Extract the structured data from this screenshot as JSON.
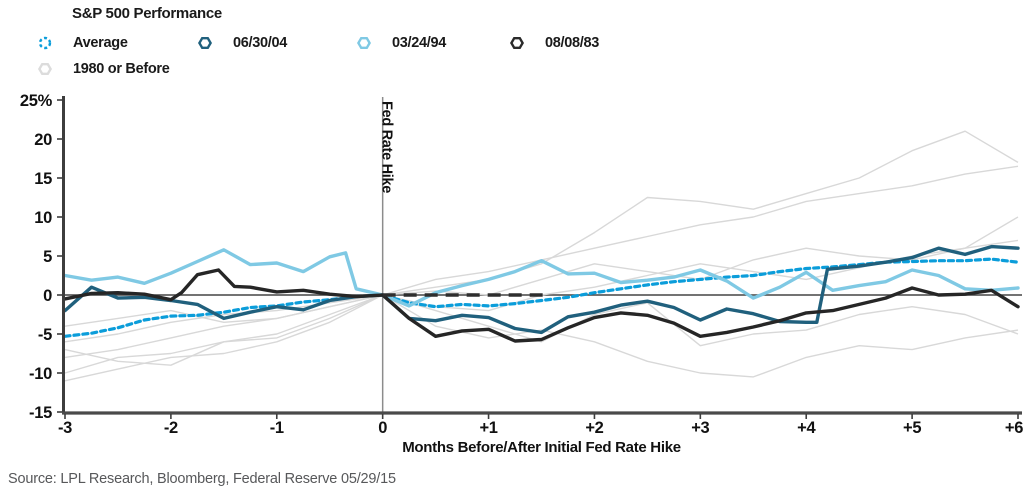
{
  "title": "S&P 500 Performance",
  "legend": {
    "items": [
      {
        "id": "average",
        "label": "Average",
        "color": "#0b9dda",
        "marker": "dashed-circle"
      },
      {
        "id": "hike-2004",
        "label": "06/30/04",
        "color": "#20607d",
        "marker": "hexagon"
      },
      {
        "id": "hike-1994",
        "label": "03/24/94",
        "color": "#7fc9e4",
        "marker": "hexagon"
      },
      {
        "id": "hike-1983",
        "label": "08/08/83",
        "color": "#2b2b2b",
        "marker": "hexagon"
      },
      {
        "id": "pre-1980",
        "label": "1980 or Before",
        "color": "#dcdcdc",
        "marker": "hexagon"
      }
    ]
  },
  "source": "Source: LPL Research, Bloomberg, Federal Reserve   05/29/15",
  "chart_data": {
    "type": "line",
    "title": "S&P 500 Performance",
    "xlabel": "Months Before/After Initial Fed Rate Hike",
    "ylabel": "",
    "xlim": [
      -3,
      6
    ],
    "ylim": [
      -15,
      25
    ],
    "grid": false,
    "zero_line": true,
    "x_ticks": [
      {
        "v": -3,
        "label": "-3"
      },
      {
        "v": -2,
        "label": "-2"
      },
      {
        "v": -1,
        "label": "-1"
      },
      {
        "v": 0,
        "label": "0"
      },
      {
        "v": 1,
        "label": "+1"
      },
      {
        "v": 2,
        "label": "+2"
      },
      {
        "v": 3,
        "label": "+3"
      },
      {
        "v": 4,
        "label": "+4"
      },
      {
        "v": 5,
        "label": "+5"
      },
      {
        "v": 6,
        "label": "+6"
      }
    ],
    "y_ticks": [
      {
        "v": 25,
        "label": "25%"
      },
      {
        "v": 20,
        "label": "20"
      },
      {
        "v": 15,
        "label": "15"
      },
      {
        "v": 10,
        "label": "10"
      },
      {
        "v": 5,
        "label": "5"
      },
      {
        "v": 0,
        "label": "0"
      },
      {
        "v": -5,
        "label": "-5"
      },
      {
        "v": -10,
        "label": "-10"
      },
      {
        "v": -15,
        "label": "-15"
      }
    ],
    "annotations": {
      "vline": {
        "x": 0,
        "label": "Fed Rate Hike",
        "color": "#8c8c8c"
      },
      "flat_zero_dash": {
        "x1": 0,
        "x2": 1.52,
        "y": 0,
        "color": "#2e2e2e"
      }
    },
    "series": [
      {
        "id": "average",
        "name": "Average",
        "color": "#0b9dda",
        "style": "dashed",
        "width": 3.2,
        "points": [
          [
            -3,
            -5.3
          ],
          [
            -2.75,
            -4.9
          ],
          [
            -2.5,
            -4.2
          ],
          [
            -2.25,
            -3.2
          ],
          [
            -2,
            -2.7
          ],
          [
            -1.75,
            -2.6
          ],
          [
            -1.5,
            -2.2
          ],
          [
            -1.25,
            -1.6
          ],
          [
            -1,
            -1.4
          ],
          [
            -0.75,
            -0.9
          ],
          [
            -0.5,
            -0.6
          ],
          [
            -0.25,
            -0.2
          ],
          [
            0,
            0
          ],
          [
            0.25,
            -1.0
          ],
          [
            0.5,
            -1.5
          ],
          [
            0.75,
            -1.2
          ],
          [
            1,
            -1.4
          ],
          [
            1.25,
            -1.1
          ],
          [
            1.5,
            -0.7
          ],
          [
            1.75,
            -0.3
          ],
          [
            2,
            0.3
          ],
          [
            2.25,
            0.8
          ],
          [
            2.5,
            1.3
          ],
          [
            2.75,
            1.7
          ],
          [
            3,
            2.0
          ],
          [
            3.25,
            2.3
          ],
          [
            3.5,
            2.5
          ],
          [
            3.75,
            3.0
          ],
          [
            4,
            3.4
          ],
          [
            4.25,
            3.6
          ],
          [
            4.5,
            3.9
          ],
          [
            4.75,
            4.2
          ],
          [
            5,
            4.3
          ],
          [
            5.25,
            4.4
          ],
          [
            5.5,
            4.4
          ],
          [
            5.75,
            4.6
          ],
          [
            6,
            4.2
          ]
        ]
      },
      {
        "id": "hike-1994",
        "name": "03/24/94",
        "color": "#7fc9e4",
        "style": "solid",
        "width": 3.4,
        "points": [
          [
            -3,
            2.5
          ],
          [
            -2.75,
            1.9
          ],
          [
            -2.5,
            2.3
          ],
          [
            -2.25,
            1.5
          ],
          [
            -2,
            2.8
          ],
          [
            -1.75,
            4.3
          ],
          [
            -1.5,
            5.8
          ],
          [
            -1.25,
            3.9
          ],
          [
            -1,
            4.1
          ],
          [
            -0.75,
            3.0
          ],
          [
            -0.5,
            4.9
          ],
          [
            -0.35,
            5.4
          ],
          [
            -0.25,
            0.8
          ],
          [
            0,
            0
          ],
          [
            0.25,
            -1.4
          ],
          [
            0.5,
            0.3
          ],
          [
            0.75,
            1.2
          ],
          [
            1,
            2.0
          ],
          [
            1.25,
            3.0
          ],
          [
            1.5,
            4.4
          ],
          [
            1.75,
            2.7
          ],
          [
            2,
            2.8
          ],
          [
            2.25,
            1.6
          ],
          [
            2.5,
            1.9
          ],
          [
            2.75,
            2.3
          ],
          [
            3,
            3.2
          ],
          [
            3.25,
            1.8
          ],
          [
            3.5,
            -0.4
          ],
          [
            3.75,
            1.0
          ],
          [
            4,
            2.9
          ],
          [
            4.25,
            0.6
          ],
          [
            4.5,
            1.2
          ],
          [
            4.75,
            1.7
          ],
          [
            5,
            3.2
          ],
          [
            5.25,
            2.5
          ],
          [
            5.5,
            0.8
          ],
          [
            5.75,
            0.6
          ],
          [
            6,
            0.9
          ]
        ]
      },
      {
        "id": "hike-2004",
        "name": "06/30/04",
        "color": "#20607d",
        "style": "solid",
        "width": 3.4,
        "points": [
          [
            -3,
            -2.0
          ],
          [
            -2.75,
            1.0
          ],
          [
            -2.5,
            -0.4
          ],
          [
            -2.25,
            -0.3
          ],
          [
            -2,
            -0.7
          ],
          [
            -1.75,
            -1.2
          ],
          [
            -1.5,
            -3.0
          ],
          [
            -1.25,
            -2.2
          ],
          [
            -1,
            -1.5
          ],
          [
            -0.75,
            -1.9
          ],
          [
            -0.5,
            -0.7
          ],
          [
            -0.25,
            -0.2
          ],
          [
            0,
            0
          ],
          [
            0.25,
            -3.0
          ],
          [
            0.5,
            -3.3
          ],
          [
            0.75,
            -2.6
          ],
          [
            1,
            -2.9
          ],
          [
            1.25,
            -4.3
          ],
          [
            1.5,
            -4.8
          ],
          [
            1.75,
            -2.8
          ],
          [
            2,
            -2.2
          ],
          [
            2.25,
            -1.3
          ],
          [
            2.5,
            -0.8
          ],
          [
            2.75,
            -1.6
          ],
          [
            3,
            -3.2
          ],
          [
            3.25,
            -1.8
          ],
          [
            3.5,
            -2.4
          ],
          [
            3.75,
            -3.4
          ],
          [
            4,
            -3.5
          ],
          [
            4.1,
            -3.5
          ],
          [
            4.2,
            3.3
          ],
          [
            4.5,
            3.7
          ],
          [
            4.75,
            4.2
          ],
          [
            5,
            4.8
          ],
          [
            5.25,
            6.0
          ],
          [
            5.5,
            5.2
          ],
          [
            5.75,
            6.2
          ],
          [
            6,
            6.0
          ]
        ]
      },
      {
        "id": "hike-1983",
        "name": "08/08/83",
        "color": "#262626",
        "style": "solid",
        "width": 3.4,
        "points": [
          [
            -3,
            -0.5
          ],
          [
            -2.75,
            0.2
          ],
          [
            -2.5,
            0.3
          ],
          [
            -2.25,
            0.1
          ],
          [
            -2,
            -0.6
          ],
          [
            -1.9,
            0.3
          ],
          [
            -1.75,
            2.6
          ],
          [
            -1.55,
            3.2
          ],
          [
            -1.4,
            1.1
          ],
          [
            -1.25,
            1.0
          ],
          [
            -1,
            0.4
          ],
          [
            -0.75,
            0.6
          ],
          [
            -0.5,
            0.1
          ],
          [
            -0.25,
            -0.2
          ],
          [
            0,
            0
          ],
          [
            0.25,
            -3.0
          ],
          [
            0.5,
            -5.3
          ],
          [
            0.75,
            -4.6
          ],
          [
            1,
            -4.4
          ],
          [
            1.25,
            -5.9
          ],
          [
            1.5,
            -5.7
          ],
          [
            1.75,
            -4.2
          ],
          [
            2,
            -2.9
          ],
          [
            2.25,
            -2.3
          ],
          [
            2.5,
            -2.6
          ],
          [
            2.75,
            -3.6
          ],
          [
            3,
            -5.3
          ],
          [
            3.25,
            -4.8
          ],
          [
            3.5,
            -4.1
          ],
          [
            3.75,
            -3.3
          ],
          [
            4,
            -2.3
          ],
          [
            4.25,
            -2.0
          ],
          [
            4.5,
            -1.2
          ],
          [
            4.75,
            -0.4
          ],
          [
            5,
            0.9
          ],
          [
            5.25,
            0
          ],
          [
            5.5,
            0.1
          ],
          [
            5.75,
            0.6
          ],
          [
            6,
            -1.5
          ]
        ]
      }
    ],
    "background_series": [
      {
        "id": "pre1980-a",
        "name": "1980 or Before",
        "color": "#d8d8d8",
        "x_start": -3,
        "x_step": 0.5,
        "values": [
          -6,
          -5,
          -3.5,
          -2.5,
          -2,
          -1,
          0,
          1,
          2,
          4,
          8,
          12.5,
          12,
          11,
          13,
          15,
          18.5,
          21,
          17
        ]
      },
      {
        "id": "pre1980-b",
        "name": "1980 or Before",
        "color": "#d8d8d8",
        "x_start": -3,
        "x_step": 0.5,
        "values": [
          -8,
          -7,
          -5.5,
          -4,
          -3,
          -1.5,
          0,
          2,
          3,
          4.5,
          6,
          7.5,
          9,
          10,
          12,
          13,
          14,
          15.5,
          16.5
        ]
      },
      {
        "id": "pre1980-c",
        "name": "1980 or Before",
        "color": "#d8d8d8",
        "x_start": -3,
        "x_step": 0.5,
        "values": [
          -4,
          -3,
          -2,
          -3.5,
          -3,
          -1.5,
          0,
          0.5,
          0,
          2,
          4,
          3,
          2,
          4.5,
          6,
          5,
          4.5,
          6,
          10
        ]
      },
      {
        "id": "pre1980-d",
        "name": "1980 or Before",
        "color": "#d8d8d8",
        "x_start": -3,
        "x_step": 0.5,
        "values": [
          -7,
          -8.5,
          -9,
          -6,
          -5,
          -2.5,
          0,
          -1.5,
          -2,
          0,
          1,
          2.5,
          4,
          3,
          2,
          3.5,
          5,
          6,
          7
        ]
      },
      {
        "id": "pre1980-e",
        "name": "1980 or Before",
        "color": "#d8d8d8",
        "x_start": -3,
        "x_step": 0.5,
        "values": [
          -10,
          -8,
          -7.5,
          -6,
          -5.5,
          -3,
          0,
          -4,
          -5.5,
          -4.5,
          -6,
          -8.5,
          -10,
          -10.5,
          -8,
          -6.5,
          -7,
          -5.5,
          -4.5
        ]
      },
      {
        "id": "pre1980-f",
        "name": "1980 or Before",
        "color": "#d8d8d8",
        "x_start": -3,
        "x_step": 0.5,
        "values": [
          -11,
          -9.5,
          -8,
          -7.5,
          -6,
          -3.5,
          0,
          -2,
          -4,
          -6,
          -2.5,
          -1,
          -6.5,
          -5,
          -4.5,
          -2.5,
          -1.5,
          -2.5,
          -5
        ]
      }
    ]
  }
}
